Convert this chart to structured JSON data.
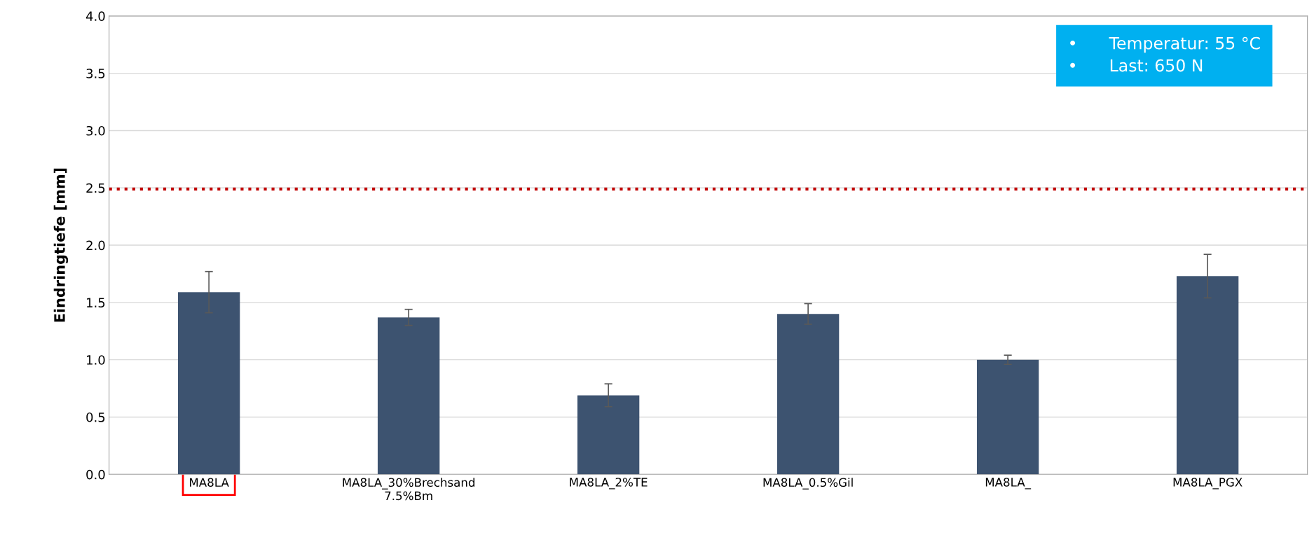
{
  "chart_data": {
    "type": "bar",
    "ylabel": "Eindringtiefe [mm]",
    "categories": [
      "MA8LA",
      "MA8LA_30%Brechsand\n7.5%Bm",
      "MA8LA_2%TE",
      "MA8LA_0.5%Gil",
      "MA8LA_",
      "MA8LA_PGX"
    ],
    "values": [
      1.59,
      1.37,
      0.69,
      1.4,
      1.0,
      1.73
    ],
    "errors": [
      0.18,
      0.07,
      0.1,
      0.09,
      0.04,
      0.19
    ],
    "color": "#3d5370",
    "ylim": [
      0,
      4
    ],
    "yticks": [
      {
        "value": 0,
        "label": "0.0"
      },
      {
        "value": 0.5,
        "label": "0.5"
      },
      {
        "value": 1,
        "label": "1.0"
      },
      {
        "value": 1.5,
        "label": "1.5"
      },
      {
        "value": 2,
        "label": "2.0"
      },
      {
        "value": 2.5,
        "label": "2.5"
      },
      {
        "value": 3,
        "label": "3.0"
      },
      {
        "value": 3.5,
        "label": "3.5"
      },
      {
        "value": 4,
        "label": "4.0"
      }
    ],
    "grid": "y",
    "ref_lines": [
      {
        "axis": "y",
        "value": 2.49,
        "color": "#c00000",
        "line_style": "dotted"
      }
    ],
    "annotations": [
      "•      Temperatur: 55 °C\n•      Last: 650 N"
    ]
  }
}
